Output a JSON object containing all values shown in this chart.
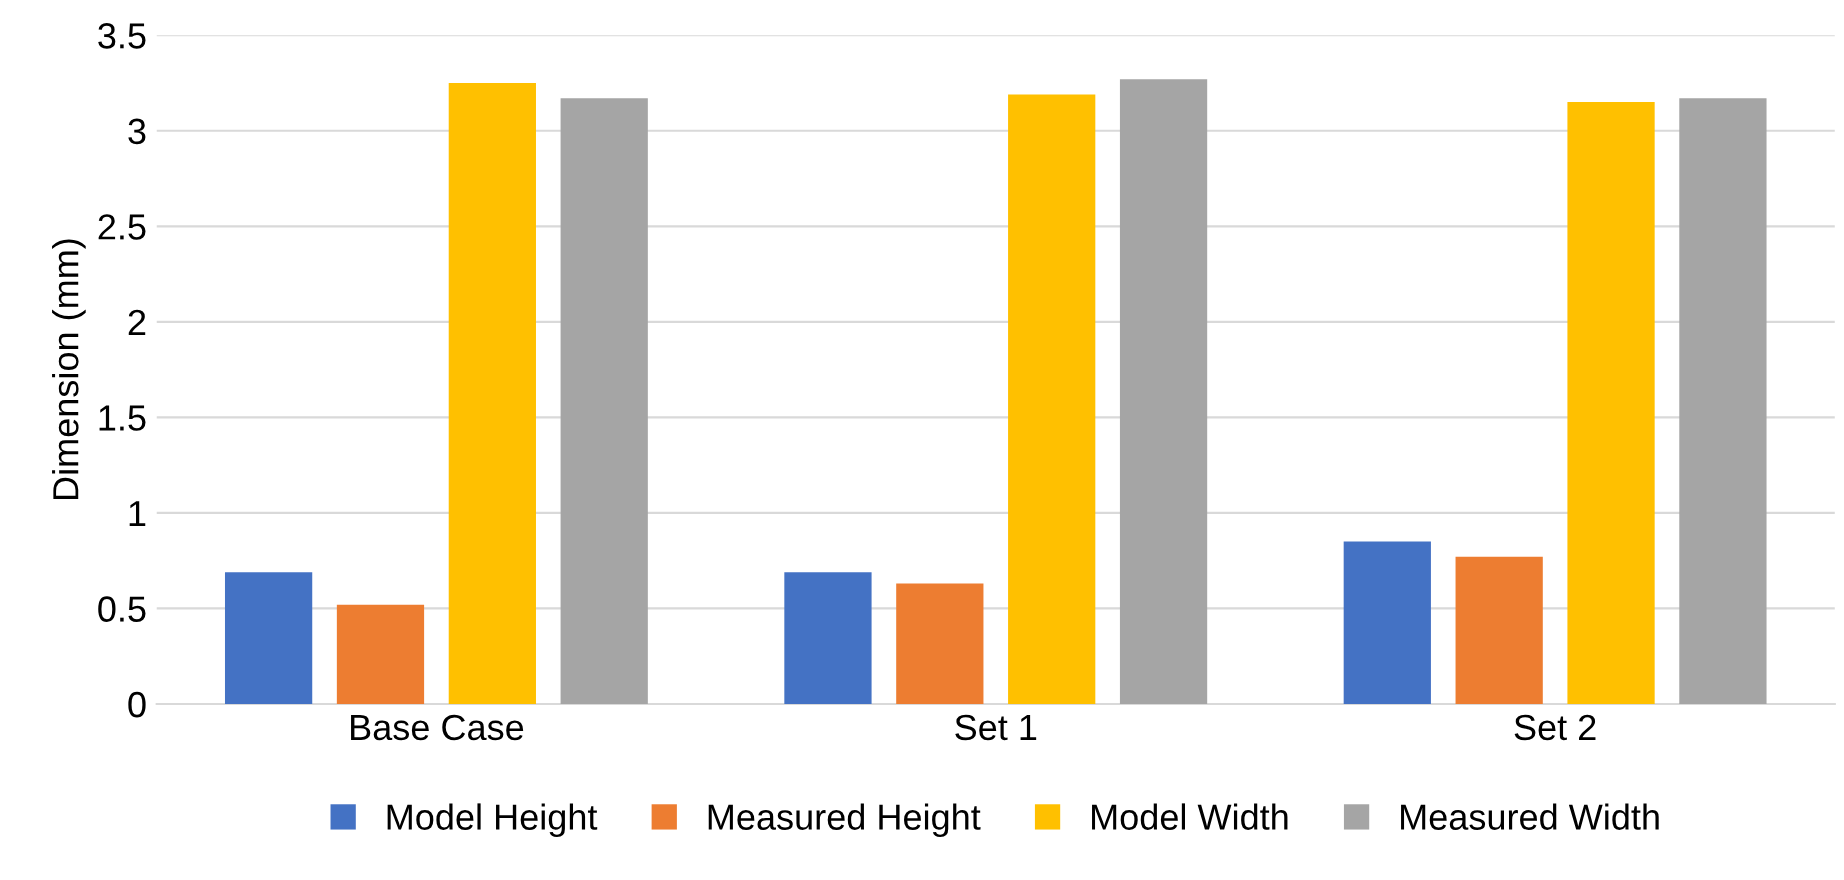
{
  "chart_data": {
    "type": "bar",
    "ylabel": "Dimension (mm)",
    "categories": [
      "Base Case",
      "Set 1",
      "Set 2"
    ],
    "series": [
      {
        "name": "Model Height",
        "color": "#4472c4",
        "values": [
          0.69,
          0.69,
          0.85
        ]
      },
      {
        "name": "Measured Height",
        "color": "#ed7d31",
        "values": [
          0.52,
          0.63,
          0.77
        ]
      },
      {
        "name": "Model Width",
        "color": "#ffc000",
        "values": [
          3.25,
          3.19,
          3.15
        ]
      },
      {
        "name": "Measured Width",
        "color": "#a5a5a5",
        "values": [
          3.17,
          3.27,
          3.17
        ]
      }
    ],
    "ylim": [
      0,
      3.5
    ],
    "yticks": [
      0,
      0.5,
      1,
      1.5,
      2,
      2.5,
      3,
      3.5
    ],
    "grid": "y",
    "legend": "bottom"
  }
}
